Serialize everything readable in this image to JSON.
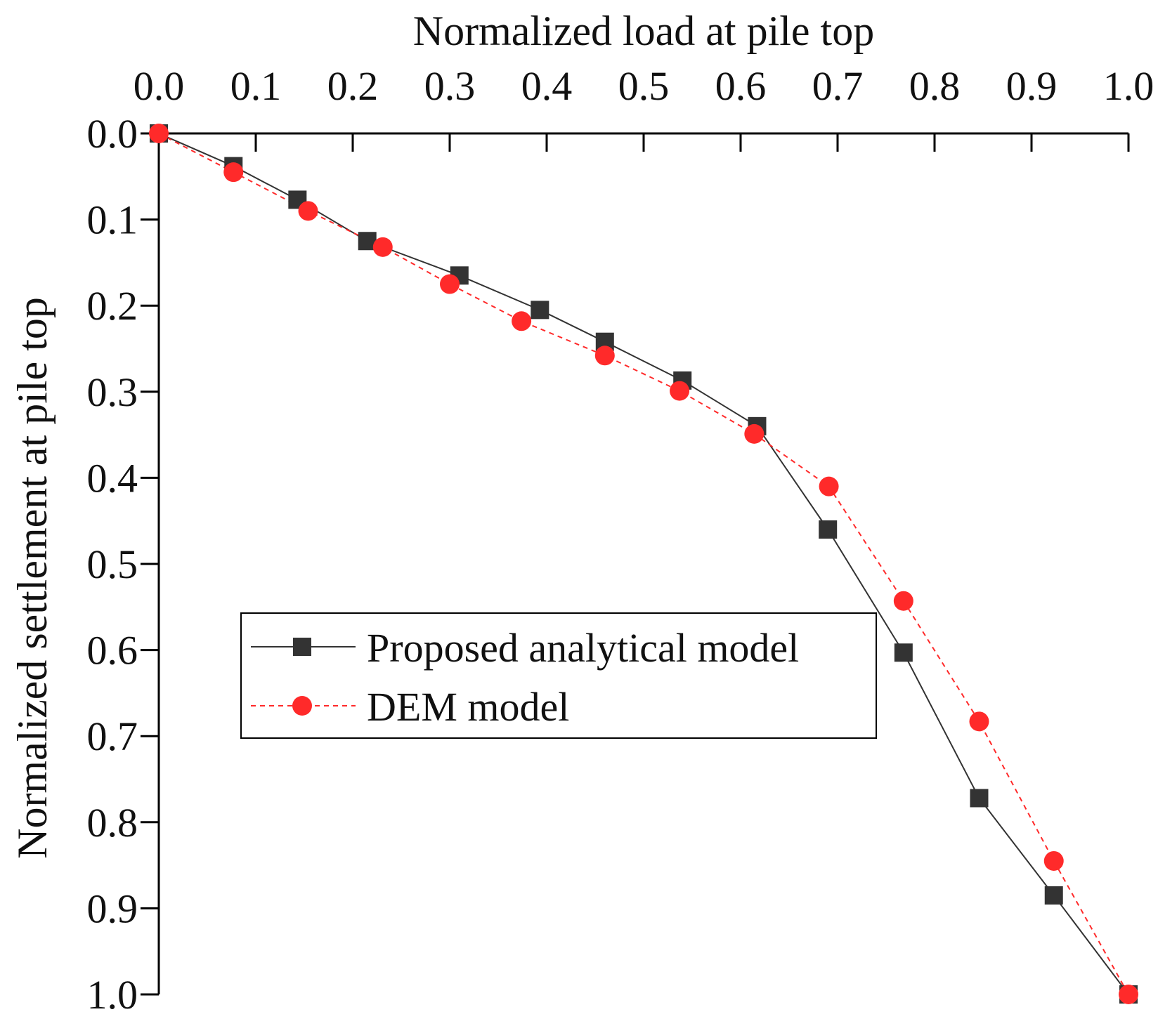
{
  "chart_data": {
    "type": "line",
    "xlabel": "Normalized load at pile top",
    "ylabel": "Normalized settlement at pile top",
    "xlim": [
      0.0,
      1.0
    ],
    "ylim": [
      0.0,
      1.0
    ],
    "x_axis_position": "top",
    "y_axis_inverted": true,
    "grid": false,
    "legend_position": "center-left",
    "x_ticks": [
      "0.0",
      "0.1",
      "0.2",
      "0.3",
      "0.4",
      "0.5",
      "0.6",
      "0.7",
      "0.8",
      "0.9",
      "1.0"
    ],
    "y_ticks": [
      "0.0",
      "0.1",
      "0.2",
      "0.3",
      "0.4",
      "0.5",
      "0.6",
      "0.7",
      "0.8",
      "0.9",
      "1.0"
    ],
    "series": [
      {
        "name": "Proposed analytical model",
        "color": "#333333",
        "marker": "square",
        "line_style": "solid",
        "x": [
          0.0,
          0.077,
          0.143,
          0.215,
          0.31,
          0.393,
          0.46,
          0.54,
          0.617,
          0.69,
          0.768,
          0.846,
          0.923,
          1.0
        ],
        "y": [
          0.0,
          0.038,
          0.077,
          0.125,
          0.165,
          0.205,
          0.242,
          0.287,
          0.34,
          0.46,
          0.603,
          0.772,
          0.885,
          1.0
        ]
      },
      {
        "name": "DEM model",
        "color": "#ff2a2a",
        "marker": "circle",
        "line_style": "dashed",
        "x": [
          0.0,
          0.077,
          0.154,
          0.231,
          0.3,
          0.374,
          0.46,
          0.537,
          0.614,
          0.691,
          0.768,
          0.846,
          0.923,
          1.0
        ],
        "y": [
          0.0,
          0.045,
          0.09,
          0.132,
          0.175,
          0.218,
          0.258,
          0.299,
          0.349,
          0.41,
          0.543,
          0.683,
          0.845,
          1.0
        ]
      }
    ]
  }
}
